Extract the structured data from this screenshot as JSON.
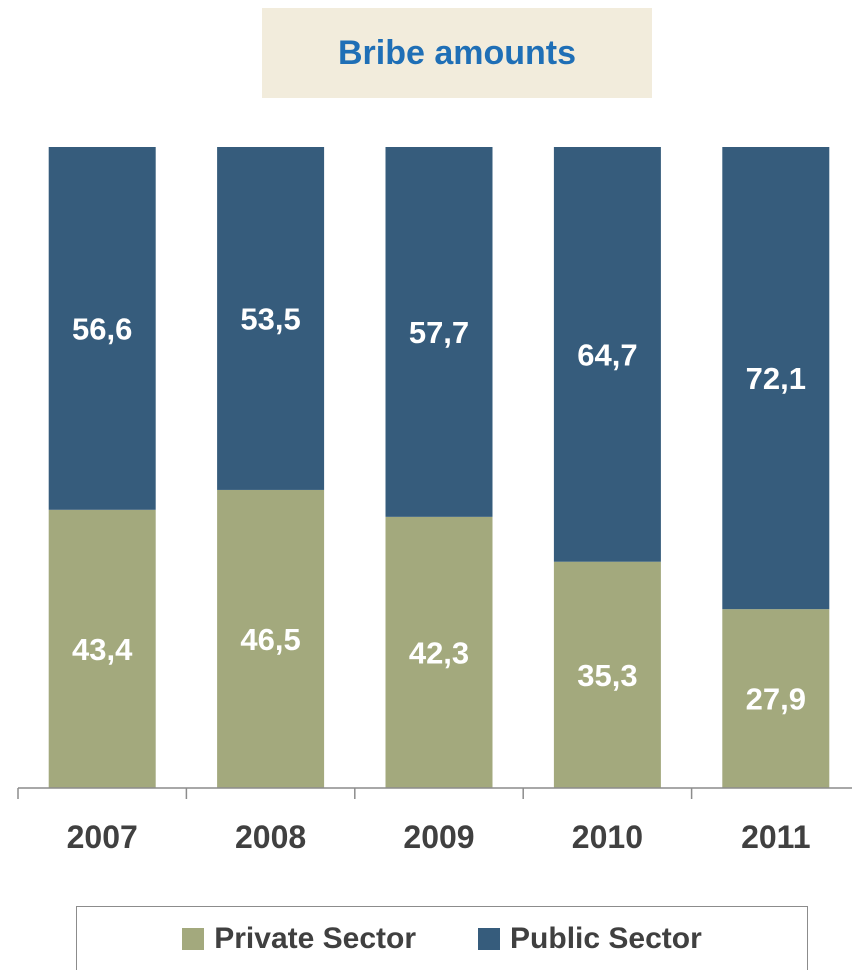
{
  "chart_data": {
    "type": "bar",
    "stacked": true,
    "title": "Bribe amounts",
    "categories": [
      "2007",
      "2008",
      "2009",
      "2010",
      "2011"
    ],
    "series": [
      {
        "name": "Private Sector",
        "values": [
          43.4,
          46.5,
          42.3,
          35.3,
          27.9
        ],
        "labels": [
          "43,4",
          "46,5",
          "42,3",
          "35,3",
          "27,9"
        ],
        "color": "#A3A97D"
      },
      {
        "name": "Public Sector",
        "values": [
          56.6,
          53.5,
          57.7,
          64.7,
          72.1
        ],
        "labels": [
          "56,6",
          "53,5",
          "57,7",
          "64,7",
          "72,1"
        ],
        "color": "#365C7C"
      }
    ],
    "ylim": [
      0,
      100
    ],
    "grid": false,
    "legend_position": "bottom"
  },
  "colors": {
    "title_text": "#1F6FB6",
    "title_background": "#F2ECDC",
    "data_label": "#FFFFFF",
    "tick_label": "#404040"
  }
}
